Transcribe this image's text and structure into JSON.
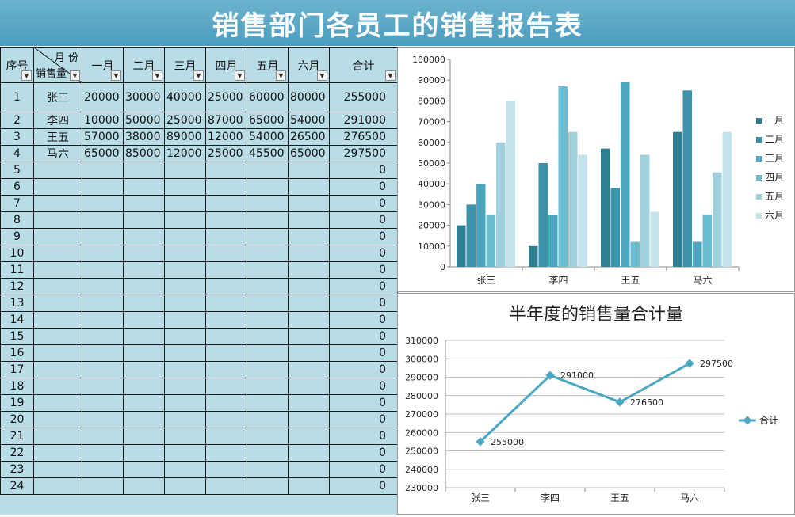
{
  "title": "销售部门各员工的销售报告表",
  "table": {
    "header_seq": "序号",
    "header_corner_top": "月 份",
    "header_corner_bottom": "销售量",
    "months": [
      "一月",
      "二月",
      "三月",
      "四月",
      "五月",
      "六月"
    ],
    "header_total": "合计",
    "rows": [
      {
        "seq": "1",
        "name": "张三",
        "values": [
          "20000",
          "30000",
          "40000",
          "25000",
          "60000",
          "80000"
        ],
        "total": "255000"
      },
      {
        "seq": "2",
        "name": "李四",
        "values": [
          "10000",
          "50000",
          "25000",
          "87000",
          "65000",
          "54000"
        ],
        "total": "291000"
      },
      {
        "seq": "3",
        "name": "王五",
        "values": [
          "57000",
          "38000",
          "89000",
          "12000",
          "54000",
          "26500"
        ],
        "total": "276500"
      },
      {
        "seq": "4",
        "name": "马六",
        "values": [
          "65000",
          "85000",
          "12000",
          "25000",
          "45500",
          "65000"
        ],
        "total": "297500"
      },
      {
        "seq": "5",
        "name": "",
        "values": [
          "",
          "",
          "",
          "",
          "",
          ""
        ],
        "total": "0"
      },
      {
        "seq": "6",
        "name": "",
        "values": [
          "",
          "",
          "",
          "",
          "",
          ""
        ],
        "total": "0"
      },
      {
        "seq": "7",
        "name": "",
        "values": [
          "",
          "",
          "",
          "",
          "",
          ""
        ],
        "total": "0"
      },
      {
        "seq": "8",
        "name": "",
        "values": [
          "",
          "",
          "",
          "",
          "",
          ""
        ],
        "total": "0"
      },
      {
        "seq": "9",
        "name": "",
        "values": [
          "",
          "",
          "",
          "",
          "",
          ""
        ],
        "total": "0"
      },
      {
        "seq": "10",
        "name": "",
        "values": [
          "",
          "",
          "",
          "",
          "",
          ""
        ],
        "total": "0"
      },
      {
        "seq": "11",
        "name": "",
        "values": [
          "",
          "",
          "",
          "",
          "",
          ""
        ],
        "total": "0"
      },
      {
        "seq": "12",
        "name": "",
        "values": [
          "",
          "",
          "",
          "",
          "",
          ""
        ],
        "total": "0"
      },
      {
        "seq": "13",
        "name": "",
        "values": [
          "",
          "",
          "",
          "",
          "",
          ""
        ],
        "total": "0"
      },
      {
        "seq": "14",
        "name": "",
        "values": [
          "",
          "",
          "",
          "",
          "",
          ""
        ],
        "total": "0"
      },
      {
        "seq": "15",
        "name": "",
        "values": [
          "",
          "",
          "",
          "",
          "",
          ""
        ],
        "total": "0"
      },
      {
        "seq": "16",
        "name": "",
        "values": [
          "",
          "",
          "",
          "",
          "",
          ""
        ],
        "total": "0"
      },
      {
        "seq": "17",
        "name": "",
        "values": [
          "",
          "",
          "",
          "",
          "",
          ""
        ],
        "total": "0"
      },
      {
        "seq": "18",
        "name": "",
        "values": [
          "",
          "",
          "",
          "",
          "",
          ""
        ],
        "total": "0"
      },
      {
        "seq": "19",
        "name": "",
        "values": [
          "",
          "",
          "",
          "",
          "",
          ""
        ],
        "total": "0"
      },
      {
        "seq": "20",
        "name": "",
        "values": [
          "",
          "",
          "",
          "",
          "",
          ""
        ],
        "total": "0"
      },
      {
        "seq": "21",
        "name": "",
        "values": [
          "",
          "",
          "",
          "",
          "",
          ""
        ],
        "total": "0"
      },
      {
        "seq": "22",
        "name": "",
        "values": [
          "",
          "",
          "",
          "",
          "",
          ""
        ],
        "total": "0"
      },
      {
        "seq": "23",
        "name": "",
        "values": [
          "",
          "",
          "",
          "",
          "",
          ""
        ],
        "total": "0"
      },
      {
        "seq": "24",
        "name": "",
        "values": [
          "",
          "",
          "",
          "",
          "",
          ""
        ],
        "total": "0"
      }
    ]
  },
  "colors": {
    "banner": "#5aa9c8",
    "sheet_bg": "#b9dde7",
    "series": [
      "#2e7e92",
      "#3a93aa",
      "#4aa7bf",
      "#6bbccf",
      "#9fd0dc",
      "#c5e3ea"
    ],
    "line": "#4aa7c1"
  },
  "chart_data": [
    {
      "type": "bar",
      "title": "",
      "categories": [
        "张三",
        "李四",
        "王五",
        "马六"
      ],
      "series": [
        {
          "name": "一月",
          "values": [
            20000,
            10000,
            57000,
            65000
          ]
        },
        {
          "name": "二月",
          "values": [
            30000,
            50000,
            38000,
            85000
          ]
        },
        {
          "name": "三月",
          "values": [
            40000,
            25000,
            89000,
            12000
          ]
        },
        {
          "name": "四月",
          "values": [
            25000,
            87000,
            12000,
            25000
          ]
        },
        {
          "name": "五月",
          "values": [
            60000,
            65000,
            54000,
            45500
          ]
        },
        {
          "name": "六月",
          "values": [
            80000,
            54000,
            26500,
            65000
          ]
        }
      ],
      "ylim": [
        0,
        100000
      ],
      "yticks": [
        "0",
        "10000",
        "20000",
        "30000",
        "40000",
        "50000",
        "60000",
        "70000",
        "80000",
        "90000",
        "100000"
      ],
      "grid": false,
      "legend": "right"
    },
    {
      "type": "line",
      "title": "半年度的销售量合计量",
      "categories": [
        "张三",
        "李四",
        "王五",
        "马六"
      ],
      "series": [
        {
          "name": "合计",
          "values": [
            255000,
            291000,
            276500,
            297500
          ]
        }
      ],
      "data_labels": [
        "255000",
        "291000",
        "276500",
        "297500"
      ],
      "ylim": [
        230000,
        310000
      ],
      "yticks": [
        "230000",
        "240000",
        "250000",
        "260000",
        "270000",
        "280000",
        "290000",
        "300000",
        "310000"
      ],
      "grid": true,
      "legend": "right"
    }
  ]
}
